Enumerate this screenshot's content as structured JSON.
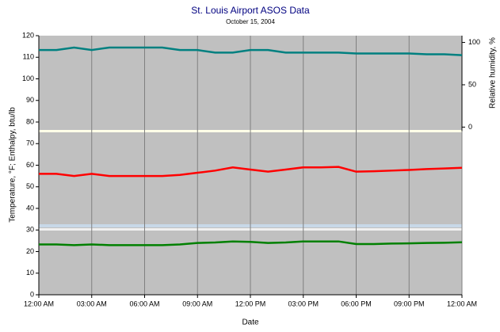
{
  "chart_data": {
    "type": "line",
    "title": "St. Louis Airport ASOS Data",
    "subtitle": "October 15, 2004",
    "x_label": "Date",
    "y_label": "Temperature, °F; Enthalpy, btu/lb",
    "y2_label": "Relative humidity, %",
    "x": [
      0,
      1,
      2,
      3,
      4,
      5,
      6,
      7,
      8,
      9,
      10,
      11,
      12,
      13,
      14,
      15,
      16,
      17,
      18,
      19,
      20,
      21,
      22,
      23,
      24
    ],
    "xlim": [
      0,
      24
    ],
    "xticks": [
      {
        "value": 0,
        "label": "12:00 AM"
      },
      {
        "value": 3,
        "label": "03:00 AM"
      },
      {
        "value": 6,
        "label": "06:00 AM"
      },
      {
        "value": 9,
        "label": "09:00 AM"
      },
      {
        "value": 12,
        "label": "12:00 PM"
      },
      {
        "value": 15,
        "label": "03:00 PM"
      },
      {
        "value": 18,
        "label": "06:00 PM"
      },
      {
        "value": 21,
        "label": "09:00 PM"
      },
      {
        "value": 24,
        "label": "12:00 AM"
      }
    ],
    "ylim": [
      0,
      120
    ],
    "yticks": [
      0,
      10,
      20,
      30,
      40,
      50,
      60,
      70,
      80,
      90,
      100,
      110,
      120
    ],
    "y2lim": [
      -198,
      108
    ],
    "y2ticks": [
      0,
      50,
      100
    ],
    "xgrid": true,
    "series": [
      {
        "color": "#008080",
        "axis": "y2",
        "values": [
          91,
          91,
          94,
          91,
          94,
          94,
          94,
          94,
          91,
          91,
          88,
          88,
          91,
          91,
          88,
          88,
          88,
          88,
          87,
          87,
          87,
          87,
          86,
          86,
          85
        ]
      },
      {
        "color": "#ff0000",
        "values": [
          56,
          56,
          55,
          56,
          55,
          55,
          55,
          55,
          55.5,
          56.5,
          57.5,
          59,
          58,
          57,
          58,
          59,
          59,
          59.2,
          57,
          57.2,
          57.5,
          57.8,
          58.2,
          58.5,
          58.8
        ]
      },
      {
        "color": "#008000",
        "values": [
          23.3,
          23.3,
          23,
          23.3,
          23,
          23,
          23,
          23,
          23.3,
          24,
          24.2,
          24.7,
          24.5,
          24,
          24.2,
          24.7,
          24.7,
          24.7,
          23.5,
          23.5,
          23.7,
          23.8,
          24,
          24.1,
          24.3
        ]
      }
    ]
  }
}
